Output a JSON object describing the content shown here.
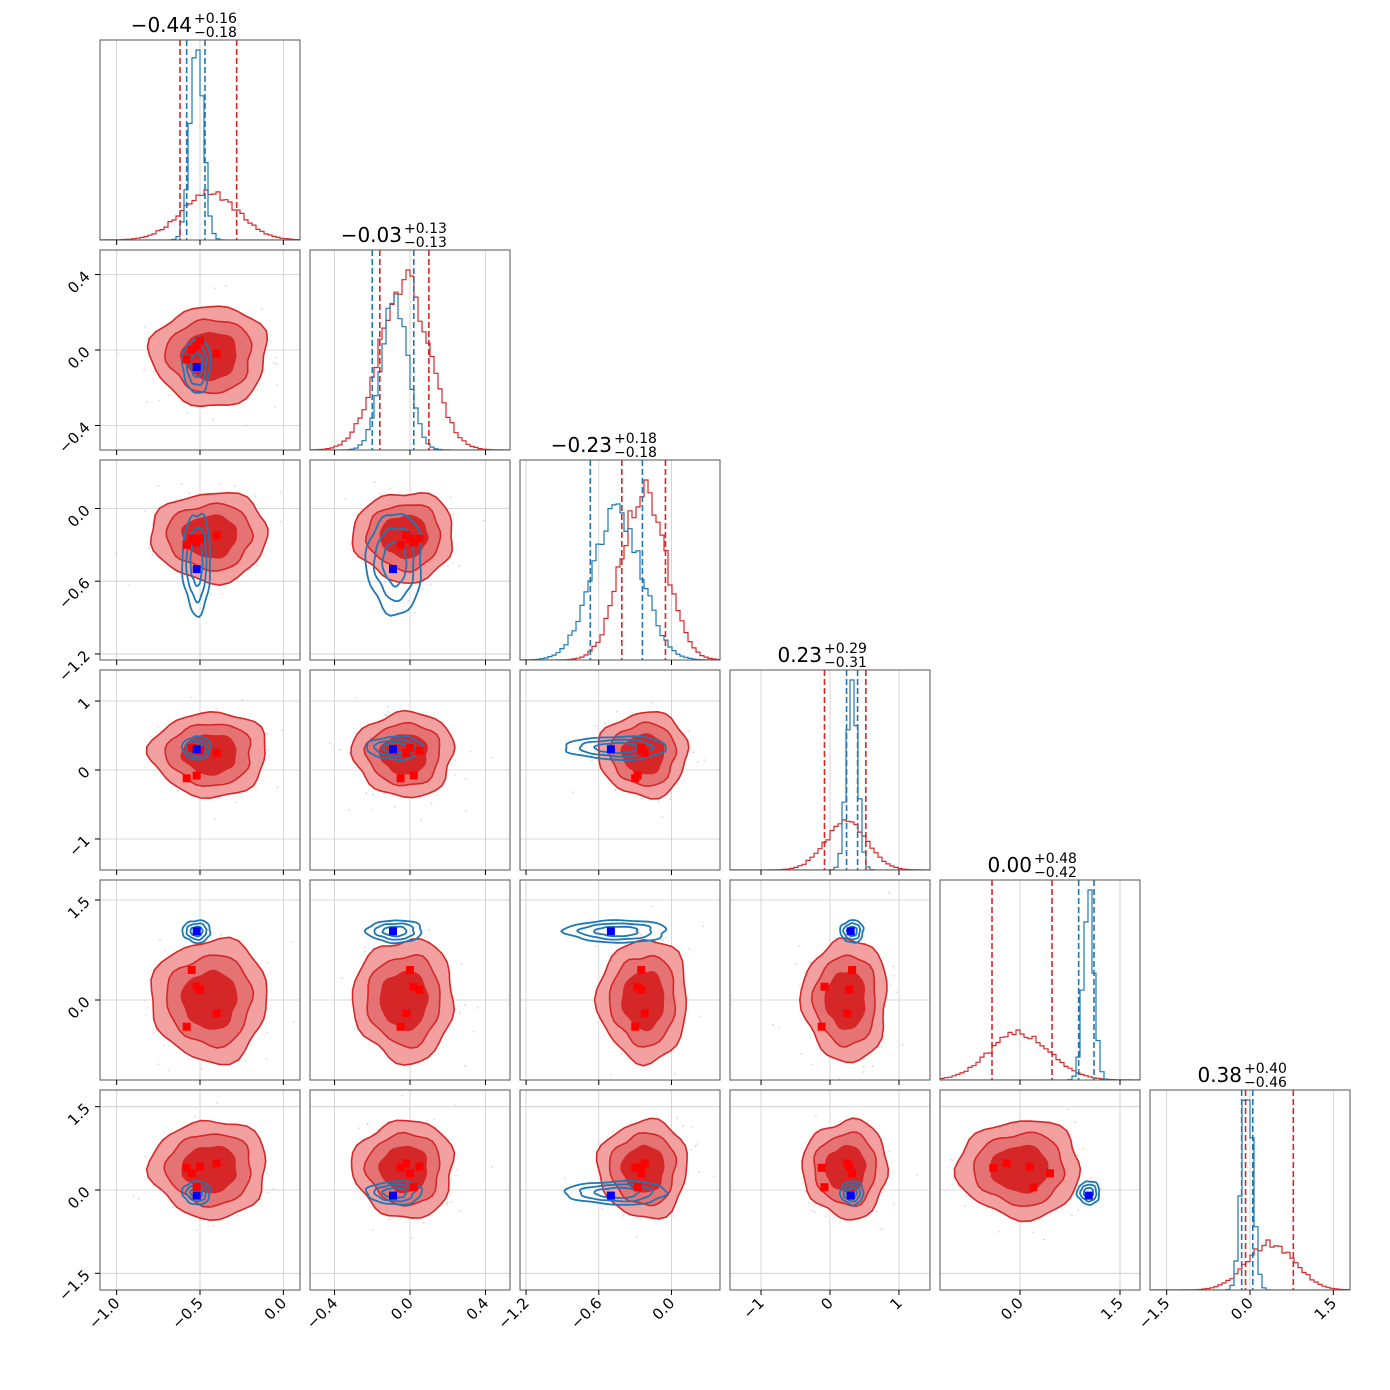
{
  "chart_data": {
    "type": "corner",
    "n_params": 6,
    "grid": true,
    "colors": {
      "red": "#d62728",
      "red_mid": "#e57373",
      "red_light": "#f2a0a0",
      "blue": "#1f77b4",
      "truth_blue": "#0000ff",
      "truth_red": "#ff0000",
      "frame": "#555555",
      "gridline": "#cccccc"
    },
    "ranges": [
      [
        -1.1,
        0.1
      ],
      [
        -0.53,
        0.53
      ],
      [
        -1.25,
        0.4
      ],
      [
        -1.45,
        1.45
      ],
      [
        -1.2,
        1.8
      ],
      [
        -1.8,
        1.8
      ]
    ],
    "ticks": [
      {
        "values": [
          -1.0,
          -0.5,
          0.0
        ],
        "labels": [
          "−1.0",
          "−0.5",
          "0.0"
        ]
      },
      {
        "values": [
          -0.4,
          0.0,
          0.4
        ],
        "labels": [
          "−0.4",
          "0.0",
          "0.4"
        ]
      },
      {
        "values": [
          -1.2,
          -0.6,
          0.0
        ],
        "labels": [
          "−1.2",
          "−0.6",
          "0.0"
        ]
      },
      {
        "values": [
          -1,
          0,
          1
        ],
        "labels": [
          "−1",
          "0",
          "1"
        ]
      },
      {
        "values": [
          0.0,
          1.5
        ],
        "labels": [
          "0.0",
          "1.5"
        ]
      },
      {
        "values": [
          -1.5,
          0.0,
          1.5
        ],
        "labels": [
          "−1.5",
          "0.0",
          "1.5"
        ]
      }
    ],
    "titles": [
      {
        "value": "−0.44",
        "plus": "+0.16",
        "minus": "−0.18"
      },
      {
        "value": "−0.03",
        "plus": "+0.13",
        "minus": "−0.13"
      },
      {
        "value": "−0.23",
        "plus": "+0.18",
        "minus": "−0.18"
      },
      {
        "value": "0.23",
        "plus": "+0.29",
        "minus": "−0.31"
      },
      {
        "value": "0.00",
        "plus": "+0.48",
        "minus": "−0.42"
      },
      {
        "value": "0.38",
        "plus": "+0.40",
        "minus": "−0.46"
      }
    ],
    "red_posterior": {
      "mean": [
        -0.44,
        -0.03,
        -0.23,
        0.23,
        0.0,
        0.38
      ],
      "sd": [
        0.17,
        0.13,
        0.18,
        0.3,
        0.45,
        0.43
      ],
      "quantiles": [
        [
          -0.62,
          -0.28
        ],
        [
          -0.16,
          0.1
        ],
        [
          -0.41,
          -0.05
        ],
        [
          -0.08,
          0.52
        ],
        [
          -0.42,
          0.48
        ],
        [
          -0.08,
          0.78
        ]
      ]
    },
    "blue_posterior": {
      "mean": [
        -0.52,
        -0.08,
        -0.45,
        0.32,
        1.03,
        -0.05
      ],
      "sd": [
        0.04,
        0.07,
        0.2,
        0.08,
        0.08,
        0.1
      ],
      "quantiles": [
        [
          -0.58,
          -0.47
        ],
        [
          -0.2,
          0.02
        ],
        [
          -0.67,
          -0.24
        ],
        [
          0.24,
          0.4
        ],
        [
          0.88,
          1.11
        ],
        [
          -0.15,
          0.05
        ]
      ]
    },
    "truth_blue": [
      -0.52,
      -0.09,
      -0.5,
      0.3,
      1.03,
      -0.1
    ],
    "truth_red": [
      [
        -0.55,
        0.0,
        -0.25,
        0.32,
        0.45,
        0.3
      ],
      [
        -0.5,
        0.05,
        -0.25,
        0.28,
        0.15,
        0.42
      ],
      [
        -0.4,
        -0.02,
        -0.22,
        0.25,
        -0.2,
        0.48
      ],
      [
        -0.58,
        -0.05,
        -0.3,
        -0.12,
        -0.4,
        0.4
      ],
      [
        -0.52,
        0.02,
        -0.28,
        -0.08,
        0.2,
        0.05
      ]
    ]
  }
}
